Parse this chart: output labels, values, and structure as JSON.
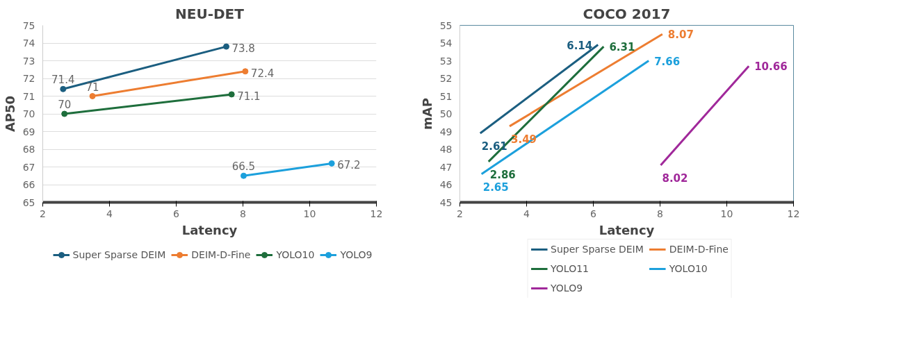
{
  "chart_data": [
    {
      "type": "line",
      "title": "NEU-DET",
      "xlabel": "Latency",
      "ylabel": "AP50",
      "xlim": [
        2,
        12
      ],
      "xticks": [
        2,
        4,
        6,
        8,
        10,
        12
      ],
      "ylim": [
        65,
        75
      ],
      "yticks": [
        65,
        66,
        67,
        68,
        69,
        70,
        71,
        72,
        73,
        74,
        75
      ],
      "grid": "y",
      "legend": "bottom",
      "marker": "circle",
      "data_labels": true,
      "series": [
        {
          "name": "Super Sparse DEIM",
          "color": "#1b5e80",
          "x": [
            2.61,
            7.5
          ],
          "values": [
            71.4,
            73.8
          ]
        },
        {
          "name": "DEIM-D-Fine",
          "color": "#ed7d31",
          "x": [
            3.49,
            8.07
          ],
          "values": [
            71,
            72.4
          ]
        },
        {
          "name": "YOLO10",
          "color": "#1e6e3c",
          "x": [
            2.65,
            7.66
          ],
          "values": [
            70,
            71.1
          ]
        },
        {
          "name": "YOLO9",
          "color": "#1ca0dc",
          "x": [
            8.02,
            10.66
          ],
          "values": [
            66.5,
            67.2
          ]
        }
      ]
    },
    {
      "type": "line",
      "title": "COCO 2017",
      "xlabel": "Latency",
      "ylabel": "mAP",
      "xlim": [
        2,
        12
      ],
      "xticks": [
        2,
        4,
        6,
        8,
        10,
        12
      ],
      "ylim": [
        45,
        55
      ],
      "yticks": [
        45,
        46,
        47,
        48,
        49,
        50,
        51,
        52,
        53,
        54,
        55
      ],
      "grid": false,
      "legend": "bottom",
      "marker": "none",
      "series": [
        {
          "name": "Super Sparse DEIM",
          "color": "#1b5e80",
          "x": [
            2.61,
            6.14
          ],
          "values": [
            48.9,
            53.9
          ]
        },
        {
          "name": "DEIM-D-Fine",
          "color": "#ed7d31",
          "x": [
            3.49,
            8.07
          ],
          "values": [
            49.3,
            54.5
          ]
        },
        {
          "name": "YOLO11",
          "color": "#1e6e3c",
          "x": [
            2.86,
            6.31
          ],
          "values": [
            47.3,
            53.8
          ]
        },
        {
          "name": "YOLO10",
          "color": "#1ca0dc",
          "x": [
            2.65,
            7.66
          ],
          "values": [
            46.6,
            53.0
          ]
        },
        {
          "name": "YOLO9",
          "color": "#a0289a",
          "x": [
            8.02,
            10.66
          ],
          "values": [
            47.1,
            52.7
          ]
        }
      ],
      "annotations": [
        {
          "text": "2.61",
          "x": 2.61,
          "y": 48.9
        },
        {
          "text": "6.14",
          "x": 6.14,
          "y": 53.9
        },
        {
          "text": "3.49",
          "x": 3.49,
          "y": 49.3
        },
        {
          "text": "8.07",
          "x": 8.07,
          "y": 54.5
        },
        {
          "text": "2.86",
          "x": 2.86,
          "y": 47.3
        },
        {
          "text": "6.31",
          "x": 6.31,
          "y": 53.8
        },
        {
          "text": "2.65",
          "x": 2.65,
          "y": 46.6
        },
        {
          "text": "7.66",
          "x": 7.66,
          "y": 53.0
        },
        {
          "text": "8.02",
          "x": 8.02,
          "y": 47.1
        },
        {
          "text": "10.66",
          "x": 10.66,
          "y": 52.7
        }
      ]
    }
  ]
}
